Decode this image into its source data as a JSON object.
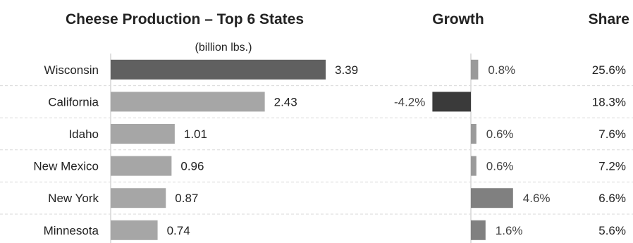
{
  "chart_data": {
    "type": "bar",
    "title": "Cheese Production – Top 6 States",
    "subtitle": "(billion lbs.)",
    "categories": [
      "Wisconsin",
      "California",
      "Idaho",
      "New Mexico",
      "New York",
      "Minnesota"
    ],
    "series": [
      {
        "name": "",
        "values": [
          3.39,
          2.43,
          1.01,
          0.96,
          0.87,
          0.74
        ]
      }
    ],
    "value_labels": [
      "3.39",
      "2.43",
      "1.01",
      "0.96",
      "0.87",
      "0.74"
    ],
    "growth": {
      "title": "Growth",
      "values": [
        0.8,
        -4.2,
        0.6,
        0.6,
        4.6,
        1.6
      ],
      "labels": [
        "0.8%",
        "-4.2%",
        "0.6%",
        "0.6%",
        "4.6%",
        "1.6%"
      ]
    },
    "share": {
      "title": "Share",
      "labels": [
        "25.6%",
        "18.3%",
        "7.6%",
        "7.2%",
        "6.6%",
        "5.6%"
      ]
    },
    "orientation": "horizontal",
    "grid": false,
    "colors": {
      "highlight_bar": "#606060",
      "bar": "#a6a6a6",
      "growth_negative": "#3a3a3a",
      "growth_positive": "#808080",
      "growth_small": "#9a9a9a",
      "divider": "#d9d9d9",
      "axis": "#bfbfbf"
    }
  }
}
